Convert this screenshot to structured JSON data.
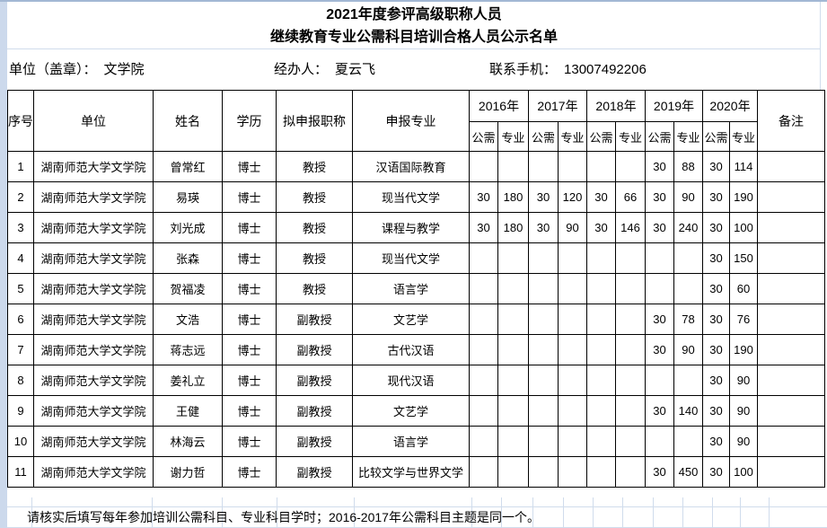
{
  "page": {
    "title_line1": "2021年度参评高级职称人员",
    "title_line2": "继续教育专业公需科目培训合格人员公示名单",
    "info": {
      "unit_label": "单位（盖章）：",
      "unit_value": "文学院",
      "handler_label": "经办人：",
      "handler_value": "夏云飞",
      "phone_label": "联系手机：",
      "phone_value": "13007492206"
    },
    "footnote": "请核实后填写每年参加培训公需科目、专业科目学时；2016-2017年公需科目主题是同一个。"
  },
  "table": {
    "headers": {
      "index": "序号",
      "unit": "单位",
      "name": "姓名",
      "degree": "学历",
      "proposed_title": "拟申报职称",
      "major": "申报专业",
      "years": [
        "2016年",
        "2017年",
        "2018年",
        "2019年",
        "2020年"
      ],
      "sub": [
        "公需",
        "专业"
      ],
      "remarks": "备注"
    },
    "rows": [
      {
        "index": "1",
        "unit": "湖南师范大学文学院",
        "name": "曾常红",
        "degree": "博士",
        "title": "教授",
        "major": "汉语国际教育",
        "scores": [
          "",
          "",
          "",
          "",
          "",
          "",
          "30",
          "88",
          "30",
          "114"
        ],
        "remark": ""
      },
      {
        "index": "2",
        "unit": "湖南师范大学文学院",
        "name": "易瑛",
        "degree": "博士",
        "title": "教授",
        "major": "现当代文学",
        "scores": [
          "30",
          "180",
          "30",
          "120",
          "30",
          "66",
          "30",
          "90",
          "30",
          "190"
        ],
        "remark": ""
      },
      {
        "index": "3",
        "unit": "湖南师范大学文学院",
        "name": "刘光成",
        "degree": "博士",
        "title": "教授",
        "major": "课程与教学",
        "scores": [
          "30",
          "180",
          "30",
          "90",
          "30",
          "146",
          "30",
          "240",
          "30",
          "100"
        ],
        "remark": ""
      },
      {
        "index": "4",
        "unit": "湖南师范大学文学院",
        "name": "张森",
        "degree": "博士",
        "title": "教授",
        "major": "现当代文学",
        "scores": [
          "",
          "",
          "",
          "",
          "",
          "",
          "",
          "",
          "30",
          "150"
        ],
        "remark": ""
      },
      {
        "index": "5",
        "unit": "湖南师范大学文学院",
        "name": "贺福凌",
        "degree": "博士",
        "title": "教授",
        "major": "语言学",
        "scores": [
          "",
          "",
          "",
          "",
          "",
          "",
          "",
          "",
          "30",
          "60"
        ],
        "remark": ""
      },
      {
        "index": "6",
        "unit": "湖南师范大学文学院",
        "name": "文浩",
        "degree": "博士",
        "title": "副教授",
        "major": "文艺学",
        "scores": [
          "",
          "",
          "",
          "",
          "",
          "",
          "30",
          "78",
          "30",
          "76"
        ],
        "remark": ""
      },
      {
        "index": "7",
        "unit": "湖南师范大学文学院",
        "name": "蒋志远",
        "degree": "博士",
        "title": "副教授",
        "major": "古代汉语",
        "scores": [
          "",
          "",
          "",
          "",
          "",
          "",
          "30",
          "90",
          "30",
          "190"
        ],
        "remark": ""
      },
      {
        "index": "8",
        "unit": "湖南师范大学文学院",
        "name": "姜礼立",
        "degree": "博士",
        "title": "副教授",
        "major": "现代汉语",
        "scores": [
          "",
          "",
          "",
          "",
          "",
          "",
          "",
          "",
          "30",
          "90"
        ],
        "remark": ""
      },
      {
        "index": "9",
        "unit": "湖南师范大学文学院",
        "name": "王健",
        "degree": "博士",
        "title": "副教授",
        "major": "文艺学",
        "scores": [
          "",
          "",
          "",
          "",
          "",
          "",
          "30",
          "140",
          "30",
          "90"
        ],
        "remark": ""
      },
      {
        "index": "10",
        "unit": "湖南师范大学文学院",
        "name": "林海云",
        "degree": "博士",
        "title": "副教授",
        "major": "语言学",
        "scores": [
          "",
          "",
          "",
          "",
          "",
          "",
          "",
          "",
          "30",
          "90"
        ],
        "remark": ""
      },
      {
        "index": "11",
        "unit": "湖南师范大学文学院",
        "name": "谢力哲",
        "degree": "博士",
        "title": "副教授",
        "major": "比较文学与世界文学",
        "scores": [
          "",
          "",
          "",
          "",
          "",
          "",
          "30",
          "450",
          "30",
          "100"
        ],
        "remark": ""
      }
    ]
  },
  "colors": {
    "page_background": "#ffffff",
    "margin_strip": "#ccd9ec",
    "spreadsheet_gridline": "#d0dcec",
    "top_edge_line": "#a3b8d4",
    "table_border": "#000000",
    "text": "#000000"
  }
}
